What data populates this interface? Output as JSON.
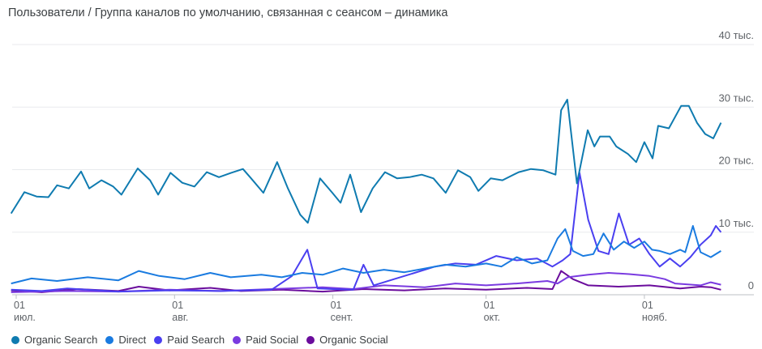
{
  "chart_data": {
    "type": "line",
    "title": "Пользователи / Группа каналов по умолчанию, связанная с сеансом – динамика",
    "x_unit": "days since 01 июл.",
    "xlim": [
      -1,
      138
    ],
    "ylim": [
      0,
      40000
    ],
    "y_ticks": [
      {
        "v": 0,
        "label": "0"
      },
      {
        "v": 10000,
        "label": "10 тыс."
      },
      {
        "v": 20000,
        "label": "20 тыс."
      },
      {
        "v": 30000,
        "label": "30 тыс."
      },
      {
        "v": 40000,
        "label": "40 тыс."
      }
    ],
    "x_ticks": [
      {
        "day": 0,
        "day_label": "01",
        "month": "июл."
      },
      {
        "day": 31,
        "day_label": "01",
        "month": "авг."
      },
      {
        "day": 62,
        "day_label": "01",
        "month": "сент."
      },
      {
        "day": 92,
        "day_label": "01",
        "month": "окт."
      },
      {
        "day": 123,
        "day_label": "01",
        "month": "нояб."
      }
    ],
    "grid": true,
    "legend_position": "bottom-left",
    "series": [
      {
        "name": "Organic Search",
        "color": "#0f7bb0",
        "points": [
          [
            -1,
            13000
          ],
          [
            1.6,
            16400
          ],
          [
            4,
            15700
          ],
          [
            6.3,
            15600
          ],
          [
            8,
            17500
          ],
          [
            10.3,
            17000
          ],
          [
            12.7,
            19700
          ],
          [
            14.3,
            17000
          ],
          [
            16.7,
            18300
          ],
          [
            19,
            17300
          ],
          [
            20.6,
            16000
          ],
          [
            23.8,
            20200
          ],
          [
            26.2,
            18300
          ],
          [
            27.8,
            16000
          ],
          [
            30.2,
            19500
          ],
          [
            32.5,
            17900
          ],
          [
            34.9,
            17300
          ],
          [
            37.3,
            19600
          ],
          [
            39.7,
            18800
          ],
          [
            42.1,
            19500
          ],
          [
            44.4,
            20100
          ],
          [
            46,
            18600
          ],
          [
            48.4,
            16300
          ],
          [
            51.1,
            21200
          ],
          [
            53.2,
            17000
          ],
          [
            55.6,
            12800
          ],
          [
            57.1,
            11500
          ],
          [
            59.5,
            18600
          ],
          [
            61.9,
            16300
          ],
          [
            63.5,
            14700
          ],
          [
            65.4,
            19200
          ],
          [
            67.5,
            13200
          ],
          [
            69.8,
            17000
          ],
          [
            72.2,
            19600
          ],
          [
            74.6,
            18600
          ],
          [
            77,
            18800
          ],
          [
            79.4,
            19200
          ],
          [
            81.7,
            18600
          ],
          [
            84.1,
            16300
          ],
          [
            86.5,
            19900
          ],
          [
            88.9,
            18800
          ],
          [
            90.5,
            16600
          ],
          [
            92.9,
            18600
          ],
          [
            95.2,
            18300
          ],
          [
            98.4,
            19600
          ],
          [
            100.8,
            20100
          ],
          [
            103.2,
            19900
          ],
          [
            105.6,
            19200
          ],
          [
            106.7,
            29500
          ],
          [
            107.9,
            31200
          ],
          [
            109.8,
            17800
          ],
          [
            111.9,
            26300
          ],
          [
            113.2,
            23700
          ],
          [
            114.3,
            25300
          ],
          [
            116.2,
            25300
          ],
          [
            117.5,
            23700
          ],
          [
            119.8,
            22500
          ],
          [
            121.4,
            21200
          ],
          [
            123,
            24400
          ],
          [
            124.6,
            21800
          ],
          [
            125.7,
            27000
          ],
          [
            127.8,
            26600
          ],
          [
            130.2,
            30200
          ],
          [
            131.7,
            30200
          ],
          [
            133.3,
            27500
          ],
          [
            134.9,
            25700
          ],
          [
            136.5,
            25000
          ],
          [
            138,
            27500
          ]
        ]
      },
      {
        "name": "Direct",
        "color": "#1a7be0",
        "points": [
          [
            -1,
            1800
          ],
          [
            3,
            2600
          ],
          [
            8,
            2200
          ],
          [
            14,
            2800
          ],
          [
            20,
            2300
          ],
          [
            24,
            3800
          ],
          [
            28,
            3000
          ],
          [
            33,
            2500
          ],
          [
            38,
            3500
          ],
          [
            42,
            2800
          ],
          [
            48,
            3200
          ],
          [
            52,
            2800
          ],
          [
            56,
            3500
          ],
          [
            60,
            3200
          ],
          [
            64,
            4200
          ],
          [
            68,
            3500
          ],
          [
            72,
            4000
          ],
          [
            76,
            3600
          ],
          [
            80,
            4200
          ],
          [
            84,
            4800
          ],
          [
            88,
            4500
          ],
          [
            92,
            5000
          ],
          [
            95,
            4500
          ],
          [
            98,
            6000
          ],
          [
            101,
            5000
          ],
          [
            104,
            5500
          ],
          [
            106,
            9000
          ],
          [
            107.5,
            10500
          ],
          [
            109,
            7000
          ],
          [
            111,
            6200
          ],
          [
            113,
            6500
          ],
          [
            115,
            9800
          ],
          [
            117,
            7200
          ],
          [
            119,
            8500
          ],
          [
            121,
            7500
          ],
          [
            123,
            8500
          ],
          [
            124.5,
            7200
          ],
          [
            126,
            7000
          ],
          [
            128,
            6500
          ],
          [
            130,
            7200
          ],
          [
            131,
            6800
          ],
          [
            132.5,
            11000
          ],
          [
            134,
            6800
          ],
          [
            136,
            6000
          ],
          [
            138,
            7000
          ]
        ]
      },
      {
        "name": "Paid Search",
        "color": "#4a3ff0",
        "points": [
          [
            -1,
            800
          ],
          [
            5,
            600
          ],
          [
            10,
            1000
          ],
          [
            20,
            500
          ],
          [
            30,
            700
          ],
          [
            40,
            600
          ],
          [
            50,
            800
          ],
          [
            54,
            3000
          ],
          [
            57,
            7200
          ],
          [
            59,
            1000
          ],
          [
            62,
            900
          ],
          [
            66,
            800
          ],
          [
            68,
            4800
          ],
          [
            70,
            1500
          ],
          [
            74,
            2500
          ],
          [
            78,
            3500
          ],
          [
            82,
            4500
          ],
          [
            86,
            5000
          ],
          [
            90,
            4800
          ],
          [
            94,
            6200
          ],
          [
            98,
            5500
          ],
          [
            102,
            5800
          ],
          [
            105,
            4500
          ],
          [
            107,
            5500
          ],
          [
            108.5,
            6500
          ],
          [
            110.3,
            19500
          ],
          [
            112,
            12000
          ],
          [
            114,
            7000
          ],
          [
            116,
            6500
          ],
          [
            118,
            13000
          ],
          [
            120,
            8000
          ],
          [
            122,
            9000
          ],
          [
            124,
            6500
          ],
          [
            126,
            4500
          ],
          [
            128,
            5800
          ],
          [
            130,
            4500
          ],
          [
            132,
            6000
          ],
          [
            134,
            8000
          ],
          [
            136,
            9500
          ],
          [
            137,
            11000
          ],
          [
            138,
            10000
          ]
        ]
      },
      {
        "name": "Paid Social",
        "color": "#7a3be0",
        "points": [
          [
            -1,
            400
          ],
          [
            10,
            600
          ],
          [
            20,
            500
          ],
          [
            30,
            800
          ],
          [
            40,
            600
          ],
          [
            50,
            900
          ],
          [
            60,
            1200
          ],
          [
            66,
            900
          ],
          [
            72,
            1500
          ],
          [
            80,
            1200
          ],
          [
            86,
            1800
          ],
          [
            92,
            1500
          ],
          [
            98,
            1800
          ],
          [
            104,
            2200
          ],
          [
            106,
            1800
          ],
          [
            108,
            2800
          ],
          [
            112,
            3200
          ],
          [
            116,
            3500
          ],
          [
            120,
            3300
          ],
          [
            124,
            3000
          ],
          [
            127,
            2500
          ],
          [
            129,
            1800
          ],
          [
            134,
            1500
          ],
          [
            136,
            2000
          ],
          [
            138,
            1600
          ]
        ]
      },
      {
        "name": "Organic Social",
        "color": "#6a0c9c",
        "points": [
          [
            -1,
            700
          ],
          [
            5,
            400
          ],
          [
            12,
            900
          ],
          [
            20,
            600
          ],
          [
            24,
            1300
          ],
          [
            30,
            700
          ],
          [
            38,
            1100
          ],
          [
            44,
            600
          ],
          [
            52,
            800
          ],
          [
            60,
            500
          ],
          [
            68,
            900
          ],
          [
            76,
            700
          ],
          [
            84,
            1000
          ],
          [
            92,
            800
          ],
          [
            100,
            1100
          ],
          [
            105,
            900
          ],
          [
            106.7,
            3800
          ],
          [
            109,
            2500
          ],
          [
            112,
            1500
          ],
          [
            118,
            1300
          ],
          [
            124,
            1500
          ],
          [
            130,
            1000
          ],
          [
            134,
            1300
          ],
          [
            136,
            1200
          ],
          [
            138,
            800
          ]
        ]
      }
    ]
  }
}
